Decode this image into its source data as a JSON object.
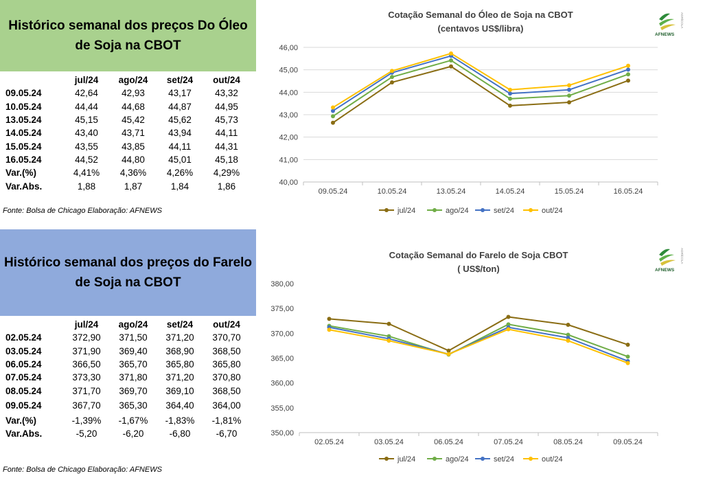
{
  "oleo": {
    "title": "Histórico semanal dos preços Do Óleo de Soja na CBOT",
    "headers": [
      "jul/24",
      "ago/24",
      "set/24",
      "out/24"
    ],
    "rows": [
      {
        "label": "09.05.24",
        "values": [
          "42,64",
          "42,93",
          "43,17",
          "43,32"
        ]
      },
      {
        "label": "10.05.24",
        "values": [
          "44,44",
          "44,68",
          "44,87",
          "44,95"
        ]
      },
      {
        "label": "13.05.24",
        "values": [
          "45,15",
          "45,42",
          "45,62",
          "45,73"
        ]
      },
      {
        "label": "14.05.24",
        "values": [
          "43,40",
          "43,71",
          "43,94",
          "44,11"
        ]
      },
      {
        "label": "15.05.24",
        "values": [
          "43,55",
          "43,85",
          "44,11",
          "44,31"
        ]
      },
      {
        "label": "16.05.24",
        "values": [
          "44,52",
          "44,80",
          "45,01",
          "45,18"
        ]
      },
      {
        "label": "Var.(%)",
        "values": [
          "4,41%",
          "4,36%",
          "4,26%",
          "4,29%"
        ]
      },
      {
        "label": "Var.Abs.",
        "values": [
          "1,88",
          "1,87",
          "1,84",
          "1,86"
        ]
      }
    ],
    "source": "Fonte: Bolsa de Chicago Elaboração: AFNEWS"
  },
  "farelo": {
    "title": "Histórico semanal dos preços do Farelo de Soja na CBOT",
    "headers": [
      "jul/24",
      "ago/24",
      "set/24",
      "out/24"
    ],
    "rows": [
      {
        "label": "02.05.24",
        "values": [
          "372,90",
          "371,50",
          "371,20",
          "370,70"
        ]
      },
      {
        "label": "03.05.24",
        "values": [
          "371,90",
          "369,40",
          "368,90",
          "368,50"
        ]
      },
      {
        "label": "06.05.24",
        "values": [
          "366,50",
          "365,70",
          "365,80",
          "365,80"
        ]
      },
      {
        "label": "07.05.24",
        "values": [
          "373,30",
          "371,80",
          "371,20",
          "370,80"
        ]
      },
      {
        "label": "08.05.24",
        "values": [
          "371,70",
          "369,70",
          "369,10",
          "368,50"
        ]
      },
      {
        "label": "09.05.24",
        "values": [
          "367,70",
          "365,30",
          "364,40",
          "364,00"
        ]
      },
      {
        "label": "Var.(%)",
        "values": [
          "-1,39%",
          "-1,67%",
          "-1,83%",
          "-1,81%"
        ]
      },
      {
        "label": "Var.Abs.",
        "values": [
          "-5,20",
          "-6,20",
          "-6,80",
          "-6,70"
        ]
      }
    ],
    "source": "Fonte: Bolsa de Chicago Elaboração: AFNEWS"
  },
  "logo": {
    "text": "AFNEWS",
    "side_text": "AGRÍCOLA"
  },
  "chart_data": [
    {
      "type": "line",
      "title": "Cotação Semanal do Óleo de Soja na CBOT",
      "subtitle": "(centavos US$/libra)",
      "categories": [
        "09.05.24",
        "10.05.24",
        "13.05.24",
        "14.05.24",
        "15.05.24",
        "16.05.24"
      ],
      "ylim": [
        40,
        46
      ],
      "yticks": [
        "40,00",
        "41,00",
        "42,00",
        "43,00",
        "44,00",
        "45,00",
        "46,00"
      ],
      "grid": true,
      "legend_position": "bottom",
      "series": [
        {
          "name": "jul/24",
          "color": "#8a6d14",
          "values": [
            42.64,
            44.44,
            45.15,
            43.4,
            43.55,
            44.52
          ]
        },
        {
          "name": "ago/24",
          "color": "#70ad47",
          "values": [
            42.93,
            44.68,
            45.42,
            43.71,
            43.85,
            44.8
          ]
        },
        {
          "name": "set/24",
          "color": "#4472c4",
          "values": [
            43.17,
            44.87,
            45.62,
            43.94,
            44.11,
            45.01
          ]
        },
        {
          "name": "out/24",
          "color": "#ffc000",
          "values": [
            43.32,
            44.95,
            45.73,
            44.11,
            44.31,
            45.18
          ]
        }
      ]
    },
    {
      "type": "line",
      "title": "Cotação Semanal do Farelo de Soja CBOT",
      "subtitle": "( US$/ton)",
      "categories": [
        "02.05.24",
        "03.05.24",
        "06.05.24",
        "07.05.24",
        "08.05.24",
        "09.05.24"
      ],
      "ylim": [
        350,
        380
      ],
      "yticks": [
        "350,00",
        "355,00",
        "360,00",
        "365,00",
        "370,00",
        "375,00",
        "380,00"
      ],
      "grid": false,
      "legend_position": "bottom",
      "series": [
        {
          "name": "jul/24",
          "color": "#8a6d14",
          "values": [
            372.9,
            371.9,
            366.5,
            373.3,
            371.7,
            367.7
          ]
        },
        {
          "name": "ago/24",
          "color": "#70ad47",
          "values": [
            371.5,
            369.4,
            365.7,
            371.8,
            369.7,
            365.3
          ]
        },
        {
          "name": "set/24",
          "color": "#4472c4",
          "values": [
            371.2,
            368.9,
            365.8,
            371.2,
            369.1,
            364.4
          ]
        },
        {
          "name": "out/24",
          "color": "#ffc000",
          "values": [
            370.7,
            368.5,
            365.8,
            370.8,
            368.5,
            364.0
          ]
        }
      ]
    }
  ]
}
